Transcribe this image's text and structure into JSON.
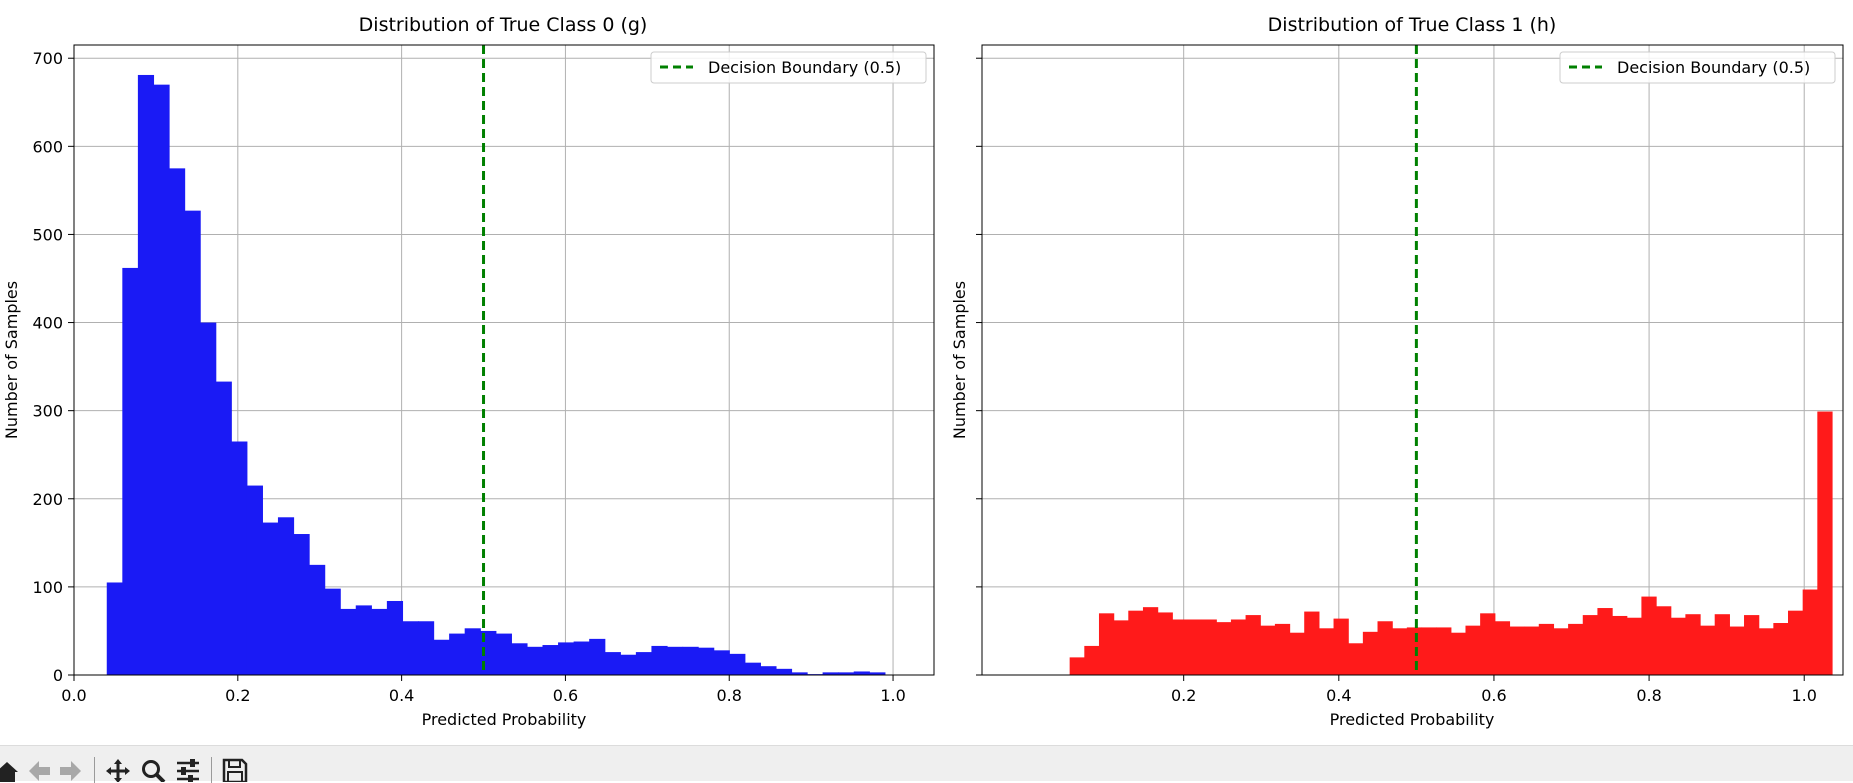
{
  "chart_data": [
    {
      "type": "histogram",
      "title": "Distribution of True Class 0 (g)",
      "xlabel": "Predicted Probability",
      "ylabel": "Number of Samples",
      "xlim": [
        0.0,
        1.05
      ],
      "ylim": [
        0,
        715
      ],
      "x_ticks": [
        0.0,
        0.2,
        0.4,
        0.6,
        0.8,
        1.0
      ],
      "x_tick_labels": [
        "0.0",
        "0.2",
        "0.4",
        "0.6",
        "0.8",
        "1.0"
      ],
      "y_ticks": [
        0,
        100,
        200,
        300,
        400,
        500,
        600,
        700
      ],
      "y_tick_labels": [
        "0",
        "100",
        "200",
        "300",
        "400",
        "500",
        "600",
        "700"
      ],
      "grid": true,
      "color": "#1a1af5",
      "bin_start": 0.04,
      "bin_width": 0.019,
      "values": [
        105,
        462,
        681,
        670,
        575,
        527,
        400,
        333,
        265,
        215,
        173,
        179,
        160,
        125,
        98,
        75,
        79,
        75,
        84,
        61,
        61,
        40,
        47,
        53,
        50,
        47,
        36,
        32,
        34,
        37,
        38,
        41,
        26,
        23,
        26,
        33,
        32,
        32,
        31,
        28,
        24,
        14,
        10,
        7,
        3,
        1,
        3,
        3,
        4,
        3
      ],
      "reference_line": {
        "x": 0.5,
        "label": "Decision Boundary (0.5)",
        "color": "#008000",
        "style": "dashed"
      },
      "legend_position": "upper right"
    },
    {
      "type": "histogram",
      "title": "Distribution of True Class 1 (h)",
      "xlabel": "Predicted Probability",
      "ylabel": "Number of Samples",
      "xlim": [
        -0.06,
        1.05
      ],
      "ylim": [
        0,
        715
      ],
      "x_ticks": [
        0.2,
        0.4,
        0.6,
        0.8,
        1.0
      ],
      "x_tick_labels": [
        "0.2",
        "0.4",
        "0.6",
        "0.8",
        "1.0"
      ],
      "y_ticks": [
        0,
        100,
        200,
        300,
        400,
        500,
        600,
        700
      ],
      "grid": true,
      "color": "#ff1a1a",
      "bin_start": 0.053,
      "bin_width": 0.0189,
      "values": [
        20,
        33,
        70,
        62,
        73,
        77,
        71,
        63,
        63,
        63,
        60,
        63,
        68,
        56,
        58,
        48,
        72,
        53,
        64,
        36,
        49,
        61,
        53,
        54,
        54,
        54,
        48,
        56,
        70,
        61,
        55,
        55,
        58,
        53,
        58,
        68,
        76,
        67,
        65,
        89,
        78,
        65,
        69,
        56,
        69,
        55,
        68,
        53,
        59,
        73,
        97,
        299
      ],
      "reference_line": {
        "x": 0.5,
        "label": "Decision Boundary (0.5)",
        "color": "#008000",
        "style": "dashed"
      },
      "legend_position": "upper right"
    }
  ],
  "toolbar": {
    "buttons": [
      "home-icon",
      "back-icon",
      "forward-icon",
      "pan-icon",
      "zoom-icon",
      "configure-subplots-icon",
      "save-icon"
    ]
  }
}
